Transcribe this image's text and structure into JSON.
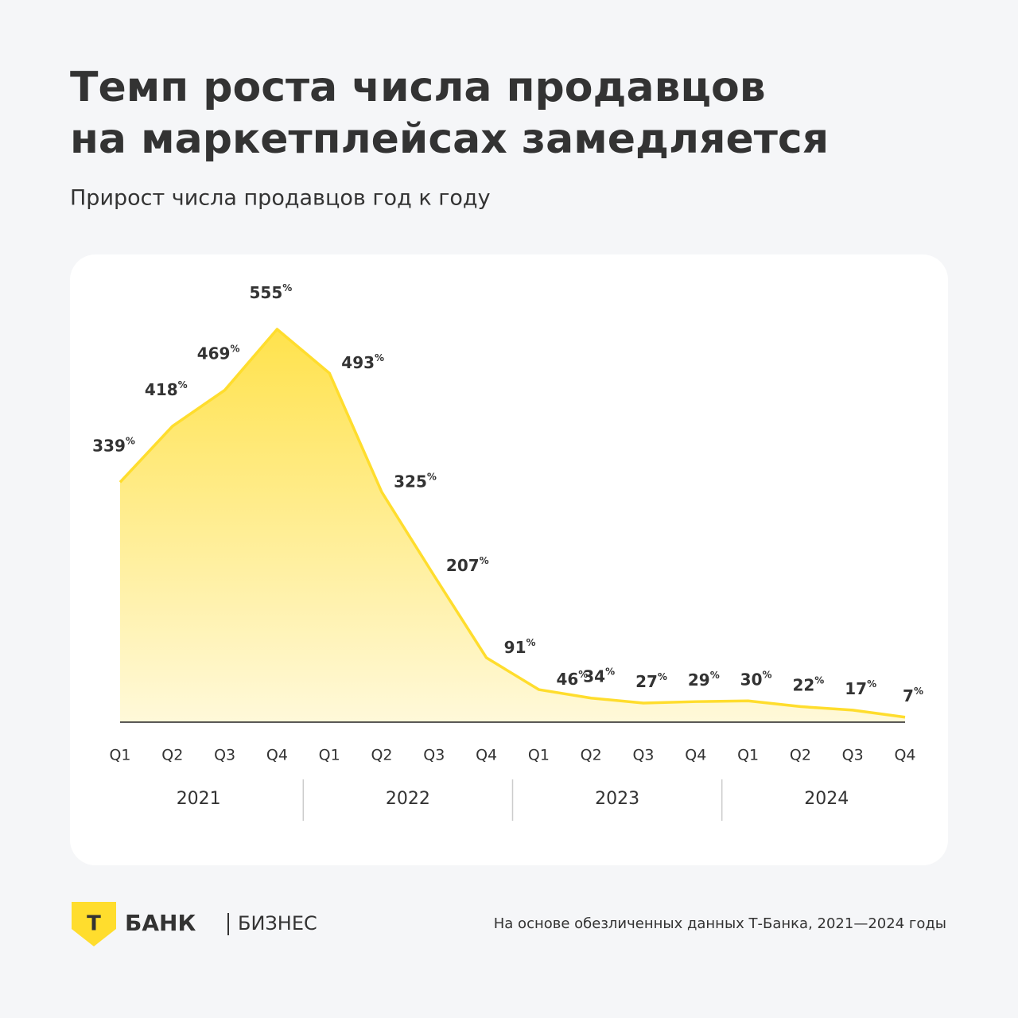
{
  "chart_data": {
    "type": "area",
    "title": [
      "Темп роста числа продавцов",
      "на маркетплейсах замедляется"
    ],
    "subtitle": "Прирост числа продавцов год к году",
    "categories": [
      "Q1",
      "Q2",
      "Q3",
      "Q4",
      "Q1",
      "Q2",
      "Q3",
      "Q4",
      "Q1",
      "Q2",
      "Q3",
      "Q4",
      "Q1",
      "Q2",
      "Q3",
      "Q4"
    ],
    "groups": [
      "2021",
      "2022",
      "2023",
      "2024"
    ],
    "values": [
      339,
      418,
      469,
      555,
      493,
      325,
      207,
      91,
      46,
      34,
      27,
      29,
      30,
      22,
      17,
      7
    ],
    "value_labels": [
      "339%",
      "418%",
      "469%",
      "555%",
      "493%",
      "325%",
      "207%",
      "91%",
      "46%",
      "34%",
      "27%",
      "29%",
      "30%",
      "22%",
      "17%",
      "7%"
    ],
    "color": "#ffdd2d"
  },
  "footer": {
    "logo_letter": "Т",
    "brand": "БАНК",
    "product": "БИЗНЕС",
    "source": "На основе обезличенных данных Т-Банка, 2021—2024 годы"
  }
}
